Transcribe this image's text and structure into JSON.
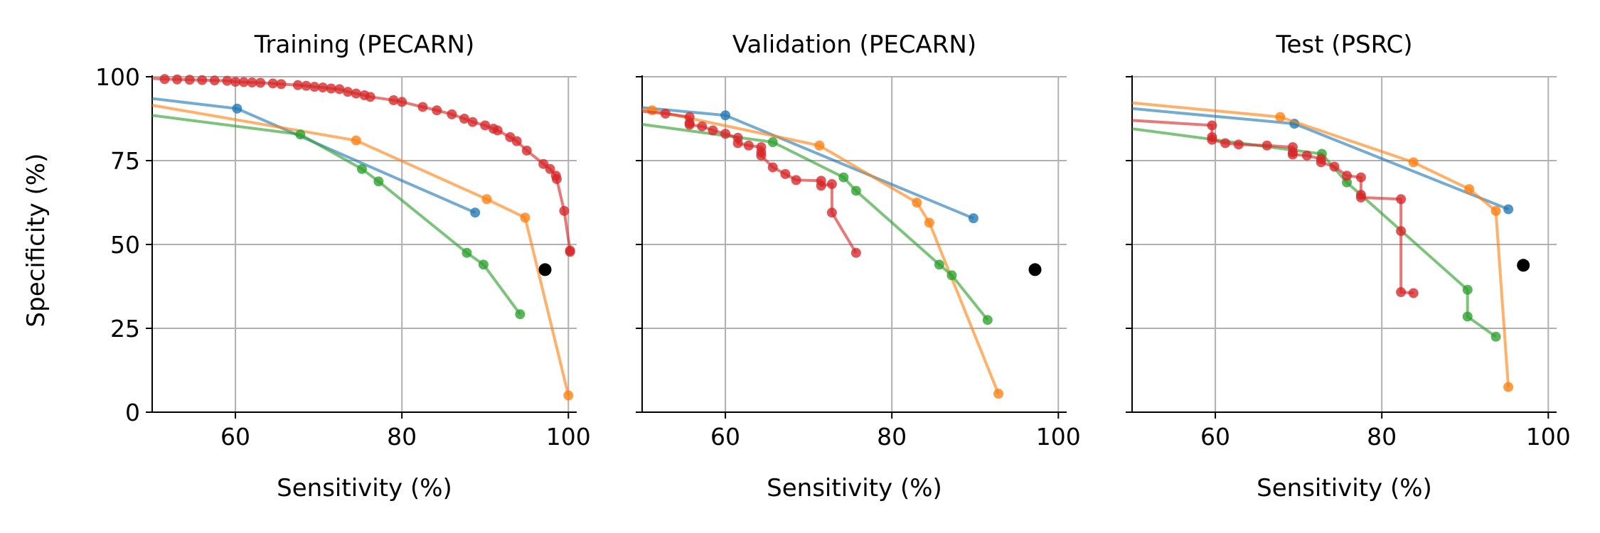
{
  "colors": {
    "blue": "#1f77b4",
    "orange": "#ff7f0e",
    "green": "#2ca02c",
    "red": "#d62728",
    "black": "#000000",
    "grid": "#b0b0b0"
  },
  "figure": {
    "ylabel": "Specificity (%)"
  },
  "chart_data": [
    {
      "type": "line",
      "title": "Training (PECARN)",
      "xlabel": "Sensitivity (%)",
      "ylabel": "Specificity (%)",
      "xlim": [
        50,
        101
      ],
      "ylim": [
        0,
        100
      ],
      "xticks": [
        "60",
        "80",
        "100"
      ],
      "yticks": [
        "0",
        "25",
        "50",
        "75",
        "100"
      ],
      "grid": true,
      "series": [
        {
          "color": "blue",
          "points": [
            [
              50,
              93.5
            ],
            [
              60.2,
              90.5
            ],
            [
              88.8,
              59.5
            ]
          ]
        },
        {
          "color": "orange",
          "points": [
            [
              50,
              91.5
            ],
            [
              74.5,
              81
            ],
            [
              90.2,
              63.5
            ],
            [
              94.8,
              58
            ],
            [
              100,
              5
            ]
          ]
        },
        {
          "color": "green",
          "points": [
            [
              50,
              88.5
            ],
            [
              67.8,
              82.8
            ],
            [
              75.2,
              72.5
            ],
            [
              77.2,
              68.8
            ],
            [
              87.8,
              47.5
            ],
            [
              89.8,
              44
            ],
            [
              94.2,
              29.2
            ]
          ]
        },
        {
          "color": "red",
          "points": [
            [
              50,
              99.5
            ],
            [
              51.5,
              99.3
            ],
            [
              53,
              99.2
            ],
            [
              54.5,
              99.1
            ],
            [
              56,
              99
            ],
            [
              57.5,
              98.9
            ],
            [
              59,
              98.8
            ],
            [
              60,
              98.5
            ],
            [
              61,
              98.4
            ],
            [
              62,
              98.3
            ],
            [
              63,
              98.2
            ],
            [
              64.5,
              98
            ],
            [
              65.5,
              97.8
            ],
            [
              67.5,
              97.5
            ],
            [
              68.5,
              97.3
            ],
            [
              69.5,
              97
            ],
            [
              70.5,
              96.8
            ],
            [
              71.5,
              96.5
            ],
            [
              72.5,
              96.3
            ],
            [
              73.5,
              95.5
            ],
            [
              74.5,
              95
            ],
            [
              75.5,
              94.5
            ],
            [
              76.2,
              94
            ],
            [
              79,
              93
            ],
            [
              80,
              92.5
            ],
            [
              82.5,
              91
            ],
            [
              84.2,
              90
            ],
            [
              86,
              88.8
            ],
            [
              87.5,
              87.5
            ],
            [
              88.5,
              86.5
            ],
            [
              90,
              85.5
            ],
            [
              91,
              84.5
            ],
            [
              91.5,
              84
            ],
            [
              93,
              82
            ],
            [
              93.8,
              80.8
            ],
            [
              95,
              78
            ],
            [
              97,
              74
            ],
            [
              97.8,
              72.5
            ],
            [
              98.5,
              70.5
            ],
            [
              98.6,
              69.5
            ],
            [
              99.5,
              60
            ],
            [
              100.2,
              48.2
            ],
            [
              100.2,
              47.8
            ]
          ]
        }
      ],
      "reference_point": {
        "color": "black",
        "point": [
          97.2,
          42.5
        ]
      }
    },
    {
      "type": "line",
      "title": "Validation (PECARN)",
      "xlabel": "Sensitivity (%)",
      "ylabel": "Specificity (%)",
      "xlim": [
        50,
        101
      ],
      "ylim": [
        0,
        100
      ],
      "xticks": [
        "60",
        "80",
        "100"
      ],
      "yticks": [
        "0",
        "25",
        "50",
        "75",
        "100"
      ],
      "grid": true,
      "series": [
        {
          "color": "blue",
          "points": [
            [
              50,
              90.8
            ],
            [
              60,
              88.5
            ],
            [
              89.8,
              57.8
            ]
          ]
        },
        {
          "color": "orange",
          "points": [
            [
              50,
              90.3
            ],
            [
              51.2,
              90
            ],
            [
              71.3,
              79.5
            ],
            [
              83,
              62.5
            ],
            [
              84.5,
              56.5
            ],
            [
              92.8,
              5.5
            ]
          ]
        },
        {
          "color": "green",
          "points": [
            [
              50,
              85.8
            ],
            [
              65.7,
              80.5
            ],
            [
              74.2,
              70
            ],
            [
              75.7,
              66
            ],
            [
              85.7,
              44
            ],
            [
              87.2,
              40.8
            ],
            [
              91.5,
              27.5
            ]
          ]
        },
        {
          "color": "red",
          "points": [
            [
              50,
              89.7
            ],
            [
              52.8,
              89
            ],
            [
              55.7,
              88
            ],
            [
              55.7,
              86.2
            ],
            [
              55.7,
              85.7
            ],
            [
              57.2,
              85.2
            ],
            [
              58.5,
              84
            ],
            [
              60,
              83
            ],
            [
              61.5,
              81.8
            ],
            [
              61.5,
              80.2
            ],
            [
              62.8,
              79.5
            ],
            [
              64.3,
              79
            ],
            [
              64.3,
              77.5
            ],
            [
              64.3,
              76.5
            ],
            [
              65.7,
              73
            ],
            [
              67.2,
              71
            ],
            [
              68.5,
              69.2
            ],
            [
              71.5,
              69
            ],
            [
              71.5,
              67.5
            ],
            [
              72.8,
              68
            ],
            [
              72.8,
              59.5
            ],
            [
              75.7,
              47.5
            ]
          ]
        }
      ],
      "reference_point": {
        "color": "black",
        "point": [
          97.2,
          42.5
        ]
      }
    },
    {
      "type": "line",
      "title": "Test (PSRC)",
      "xlabel": "Sensitivity (%)",
      "ylabel": "Specificity (%)",
      "xlim": [
        50,
        101
      ],
      "ylim": [
        0,
        100
      ],
      "xticks": [
        "60",
        "80",
        "100"
      ],
      "yticks": [
        "0",
        "25",
        "50",
        "75",
        "100"
      ],
      "grid": true,
      "series": [
        {
          "color": "blue",
          "points": [
            [
              50,
              90.5
            ],
            [
              69.5,
              86
            ],
            [
              95.2,
              60.5
            ]
          ]
        },
        {
          "color": "orange",
          "points": [
            [
              50,
              92.2
            ],
            [
              67.8,
              88
            ],
            [
              83.8,
              74.5
            ],
            [
              90.5,
              66.5
            ],
            [
              93.7,
              60
            ],
            [
              95.2,
              7.5
            ]
          ]
        },
        {
          "color": "green",
          "points": [
            [
              50,
              84.5
            ],
            [
              72.8,
              77
            ],
            [
              75.8,
              68.5
            ],
            [
              90.3,
              36.5
            ],
            [
              90.3,
              28.5
            ],
            [
              93.7,
              22.5
            ]
          ]
        },
        {
          "color": "red",
          "points": [
            [
              50,
              87
            ],
            [
              59.6,
              85.5
            ],
            [
              59.6,
              82
            ],
            [
              59.6,
              81.2
            ],
            [
              61.2,
              80.2
            ],
            [
              62.8,
              79.8
            ],
            [
              66.2,
              79.5
            ],
            [
              69.3,
              79
            ],
            [
              69.3,
              77.5
            ],
            [
              69.3,
              76.8
            ],
            [
              71,
              76.5
            ],
            [
              72.7,
              75.5
            ],
            [
              72.7,
              74.5
            ],
            [
              74.3,
              73.2
            ],
            [
              75.8,
              70.5
            ],
            [
              77.5,
              70
            ],
            [
              77.5,
              64.8
            ],
            [
              77.5,
              64
            ],
            [
              82.3,
              63.5
            ],
            [
              82.3,
              54
            ],
            [
              82.3,
              35.8
            ],
            [
              83.8,
              35.5
            ]
          ]
        }
      ],
      "reference_point": {
        "color": "black",
        "point": [
          97,
          43.8
        ]
      }
    }
  ]
}
